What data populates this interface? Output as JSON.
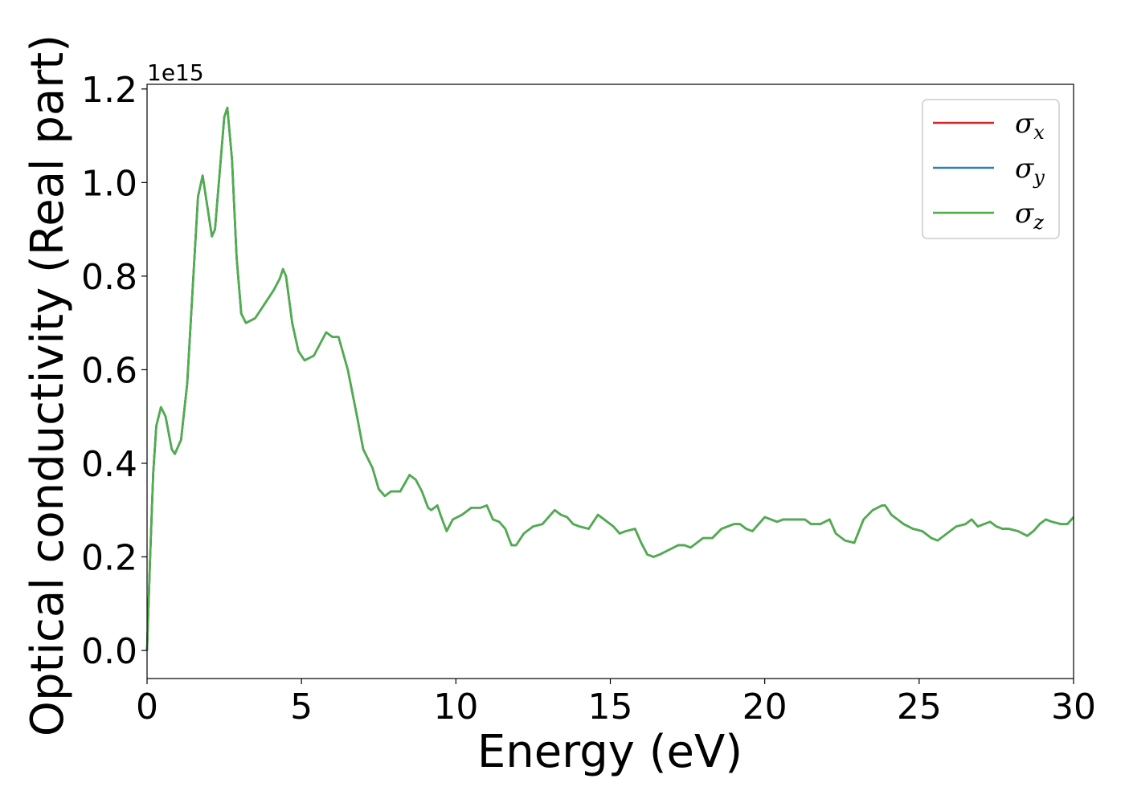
{
  "chart_data": {
    "type": "line",
    "title": "",
    "xlabel": "Energy (eV)",
    "ylabel": "Optical conductivity (Real part)",
    "y_offset_label": "1e15",
    "xlim": [
      0,
      30
    ],
    "ylim": [
      -0.06,
      1.21
    ],
    "xticks": [
      0,
      5,
      10,
      15,
      20,
      25,
      30
    ],
    "xtick_labels": [
      "0",
      "5",
      "10",
      "15",
      "20",
      "25",
      "30"
    ],
    "yticks": [
      0.0,
      0.2,
      0.4,
      0.6,
      0.8,
      1.0,
      1.2
    ],
    "ytick_labels": [
      "0.0",
      "0.2",
      "0.4",
      "0.6",
      "0.8",
      "1.0",
      "1.2"
    ],
    "grid": false,
    "legend_position": "top-right",
    "x": [
      0.0,
      0.1,
      0.2,
      0.3,
      0.45,
      0.6,
      0.8,
      0.9,
      1.1,
      1.3,
      1.5,
      1.65,
      1.8,
      1.95,
      2.1,
      2.2,
      2.35,
      2.5,
      2.6,
      2.75,
      2.9,
      3.05,
      3.2,
      3.5,
      3.8,
      4.1,
      4.3,
      4.4,
      4.5,
      4.7,
      4.9,
      5.1,
      5.4,
      5.8,
      6.0,
      6.2,
      6.5,
      6.8,
      7.0,
      7.3,
      7.5,
      7.7,
      7.9,
      8.2,
      8.5,
      8.7,
      8.9,
      9.1,
      9.2,
      9.4,
      9.5,
      9.7,
      9.9,
      10.2,
      10.5,
      10.8,
      11.0,
      11.2,
      11.4,
      11.6,
      11.8,
      11.95,
      12.2,
      12.5,
      12.8,
      13.0,
      13.2,
      13.4,
      13.6,
      13.8,
      14.0,
      14.3,
      14.6,
      14.9,
      15.1,
      15.3,
      15.5,
      15.8,
      16.0,
      16.2,
      16.4,
      16.6,
      16.9,
      17.2,
      17.4,
      17.6,
      17.8,
      18.0,
      18.3,
      18.6,
      18.8,
      19.0,
      19.2,
      19.4,
      19.6,
      19.8,
      20.0,
      20.2,
      20.4,
      20.6,
      20.8,
      21.1,
      21.3,
      21.5,
      21.8,
      22.1,
      22.3,
      22.6,
      22.9,
      23.2,
      23.5,
      23.8,
      23.9,
      24.1,
      24.3,
      24.5,
      24.8,
      25.1,
      25.4,
      25.6,
      25.9,
      26.2,
      26.5,
      26.7,
      26.9,
      27.1,
      27.3,
      27.5,
      27.7,
      27.9,
      28.2,
      28.5,
      28.7,
      28.9,
      29.1,
      29.3,
      29.6,
      29.8,
      30.0
    ],
    "series": [
      {
        "name": "σx",
        "name_symbol": "σ",
        "name_sub": "x",
        "color": "#d62728",
        "values": [
          0.0,
          0.2,
          0.38,
          0.48,
          0.52,
          0.5,
          0.43,
          0.42,
          0.45,
          0.57,
          0.8,
          0.97,
          1.015,
          0.95,
          0.885,
          0.9,
          1.02,
          1.14,
          1.16,
          1.05,
          0.84,
          0.72,
          0.7,
          0.71,
          0.74,
          0.77,
          0.795,
          0.815,
          0.8,
          0.7,
          0.64,
          0.62,
          0.63,
          0.68,
          0.67,
          0.67,
          0.6,
          0.5,
          0.43,
          0.39,
          0.345,
          0.33,
          0.34,
          0.34,
          0.375,
          0.365,
          0.34,
          0.305,
          0.3,
          0.31,
          0.29,
          0.255,
          0.28,
          0.29,
          0.305,
          0.305,
          0.31,
          0.28,
          0.275,
          0.26,
          0.225,
          0.225,
          0.25,
          0.265,
          0.27,
          0.285,
          0.3,
          0.29,
          0.285,
          0.27,
          0.265,
          0.26,
          0.29,
          0.275,
          0.265,
          0.25,
          0.255,
          0.26,
          0.23,
          0.205,
          0.2,
          0.205,
          0.215,
          0.225,
          0.225,
          0.22,
          0.23,
          0.24,
          0.24,
          0.26,
          0.265,
          0.27,
          0.27,
          0.26,
          0.255,
          0.27,
          0.285,
          0.28,
          0.275,
          0.28,
          0.28,
          0.28,
          0.28,
          0.27,
          0.27,
          0.28,
          0.25,
          0.235,
          0.23,
          0.28,
          0.3,
          0.31,
          0.31,
          0.29,
          0.28,
          0.27,
          0.26,
          0.255,
          0.24,
          0.235,
          0.25,
          0.265,
          0.27,
          0.28,
          0.265,
          0.27,
          0.275,
          0.265,
          0.26,
          0.26,
          0.255,
          0.245,
          0.255,
          0.27,
          0.28,
          0.275,
          0.27,
          0.27,
          0.285
        ]
      },
      {
        "name": "σy",
        "name_symbol": "σ",
        "name_sub": "y",
        "color": "#377eb8",
        "values": [
          0.0,
          0.2,
          0.38,
          0.48,
          0.52,
          0.5,
          0.43,
          0.42,
          0.45,
          0.57,
          0.8,
          0.97,
          1.015,
          0.95,
          0.885,
          0.9,
          1.02,
          1.14,
          1.16,
          1.05,
          0.84,
          0.72,
          0.7,
          0.71,
          0.74,
          0.77,
          0.795,
          0.815,
          0.8,
          0.7,
          0.64,
          0.62,
          0.63,
          0.68,
          0.67,
          0.67,
          0.6,
          0.5,
          0.43,
          0.39,
          0.345,
          0.33,
          0.34,
          0.34,
          0.375,
          0.365,
          0.34,
          0.305,
          0.3,
          0.31,
          0.29,
          0.255,
          0.28,
          0.29,
          0.305,
          0.305,
          0.31,
          0.28,
          0.275,
          0.26,
          0.225,
          0.225,
          0.25,
          0.265,
          0.27,
          0.285,
          0.3,
          0.29,
          0.285,
          0.27,
          0.265,
          0.26,
          0.29,
          0.275,
          0.265,
          0.25,
          0.255,
          0.26,
          0.23,
          0.205,
          0.2,
          0.205,
          0.215,
          0.225,
          0.225,
          0.22,
          0.23,
          0.24,
          0.24,
          0.26,
          0.265,
          0.27,
          0.27,
          0.26,
          0.255,
          0.27,
          0.285,
          0.28,
          0.275,
          0.28,
          0.28,
          0.28,
          0.28,
          0.27,
          0.27,
          0.28,
          0.25,
          0.235,
          0.23,
          0.28,
          0.3,
          0.31,
          0.31,
          0.29,
          0.28,
          0.27,
          0.26,
          0.255,
          0.24,
          0.235,
          0.25,
          0.265,
          0.27,
          0.28,
          0.265,
          0.27,
          0.275,
          0.265,
          0.26,
          0.26,
          0.255,
          0.245,
          0.255,
          0.27,
          0.28,
          0.275,
          0.27,
          0.27,
          0.285
        ]
      },
      {
        "name": "σz",
        "name_symbol": "σ",
        "name_sub": "z",
        "color": "#4daf4a",
        "values": [
          0.0,
          0.2,
          0.38,
          0.48,
          0.52,
          0.5,
          0.43,
          0.42,
          0.45,
          0.57,
          0.8,
          0.97,
          1.015,
          0.95,
          0.885,
          0.9,
          1.02,
          1.14,
          1.16,
          1.05,
          0.84,
          0.72,
          0.7,
          0.71,
          0.74,
          0.77,
          0.795,
          0.815,
          0.8,
          0.7,
          0.64,
          0.62,
          0.63,
          0.68,
          0.67,
          0.67,
          0.6,
          0.5,
          0.43,
          0.39,
          0.345,
          0.33,
          0.34,
          0.34,
          0.375,
          0.365,
          0.34,
          0.305,
          0.3,
          0.31,
          0.29,
          0.255,
          0.28,
          0.29,
          0.305,
          0.305,
          0.31,
          0.28,
          0.275,
          0.26,
          0.225,
          0.225,
          0.25,
          0.265,
          0.27,
          0.285,
          0.3,
          0.29,
          0.285,
          0.27,
          0.265,
          0.26,
          0.29,
          0.275,
          0.265,
          0.25,
          0.255,
          0.26,
          0.23,
          0.205,
          0.2,
          0.205,
          0.215,
          0.225,
          0.225,
          0.22,
          0.23,
          0.24,
          0.24,
          0.26,
          0.265,
          0.27,
          0.27,
          0.26,
          0.255,
          0.27,
          0.285,
          0.28,
          0.275,
          0.28,
          0.28,
          0.28,
          0.28,
          0.27,
          0.27,
          0.28,
          0.25,
          0.235,
          0.23,
          0.28,
          0.3,
          0.31,
          0.31,
          0.29,
          0.28,
          0.27,
          0.26,
          0.255,
          0.24,
          0.235,
          0.25,
          0.265,
          0.27,
          0.28,
          0.265,
          0.27,
          0.275,
          0.265,
          0.26,
          0.26,
          0.255,
          0.245,
          0.255,
          0.27,
          0.28,
          0.275,
          0.27,
          0.27,
          0.285
        ]
      }
    ]
  }
}
